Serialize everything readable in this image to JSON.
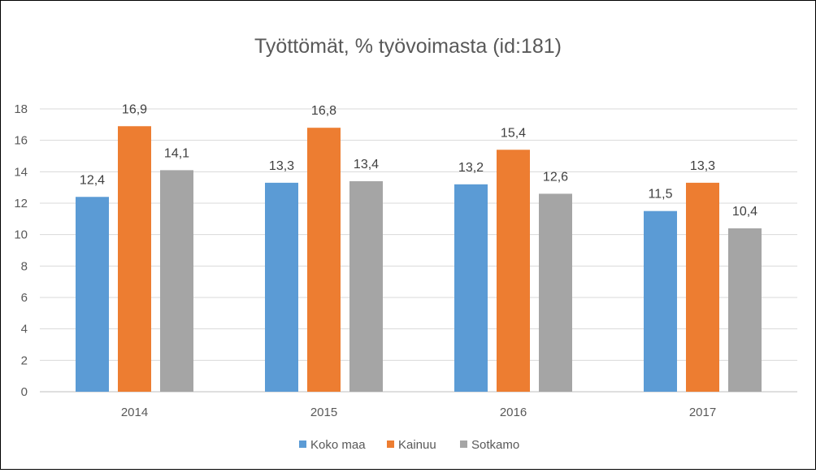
{
  "chart_data": {
    "type": "bar",
    "title": "Työttömät, % työvoimasta (id:181)",
    "categories": [
      "2014",
      "2015",
      "2016",
      "2017"
    ],
    "series": [
      {
        "name": "Koko maa",
        "color": "#5b9bd5",
        "values": [
          12.4,
          13.3,
          13.2,
          11.5
        ],
        "labels": [
          "12,4",
          "13,3",
          "13,2",
          "11,5"
        ]
      },
      {
        "name": "Kainuu",
        "color": "#ed7d31",
        "values": [
          16.9,
          16.8,
          15.4,
          13.3
        ],
        "labels": [
          "16,9",
          "16,8",
          "15,4",
          "13,3"
        ]
      },
      {
        "name": "Sotkamo",
        "color": "#a5a5a5",
        "values": [
          14.1,
          13.4,
          12.6,
          10.4
        ],
        "labels": [
          "14,1",
          "13,4",
          "12,6",
          "10,4"
        ]
      }
    ],
    "ylim": [
      0,
      18
    ],
    "yticks": [
      "0",
      "2",
      "4",
      "6",
      "8",
      "10",
      "12",
      "14",
      "16",
      "18"
    ],
    "grid": true,
    "legend": "bottom"
  }
}
